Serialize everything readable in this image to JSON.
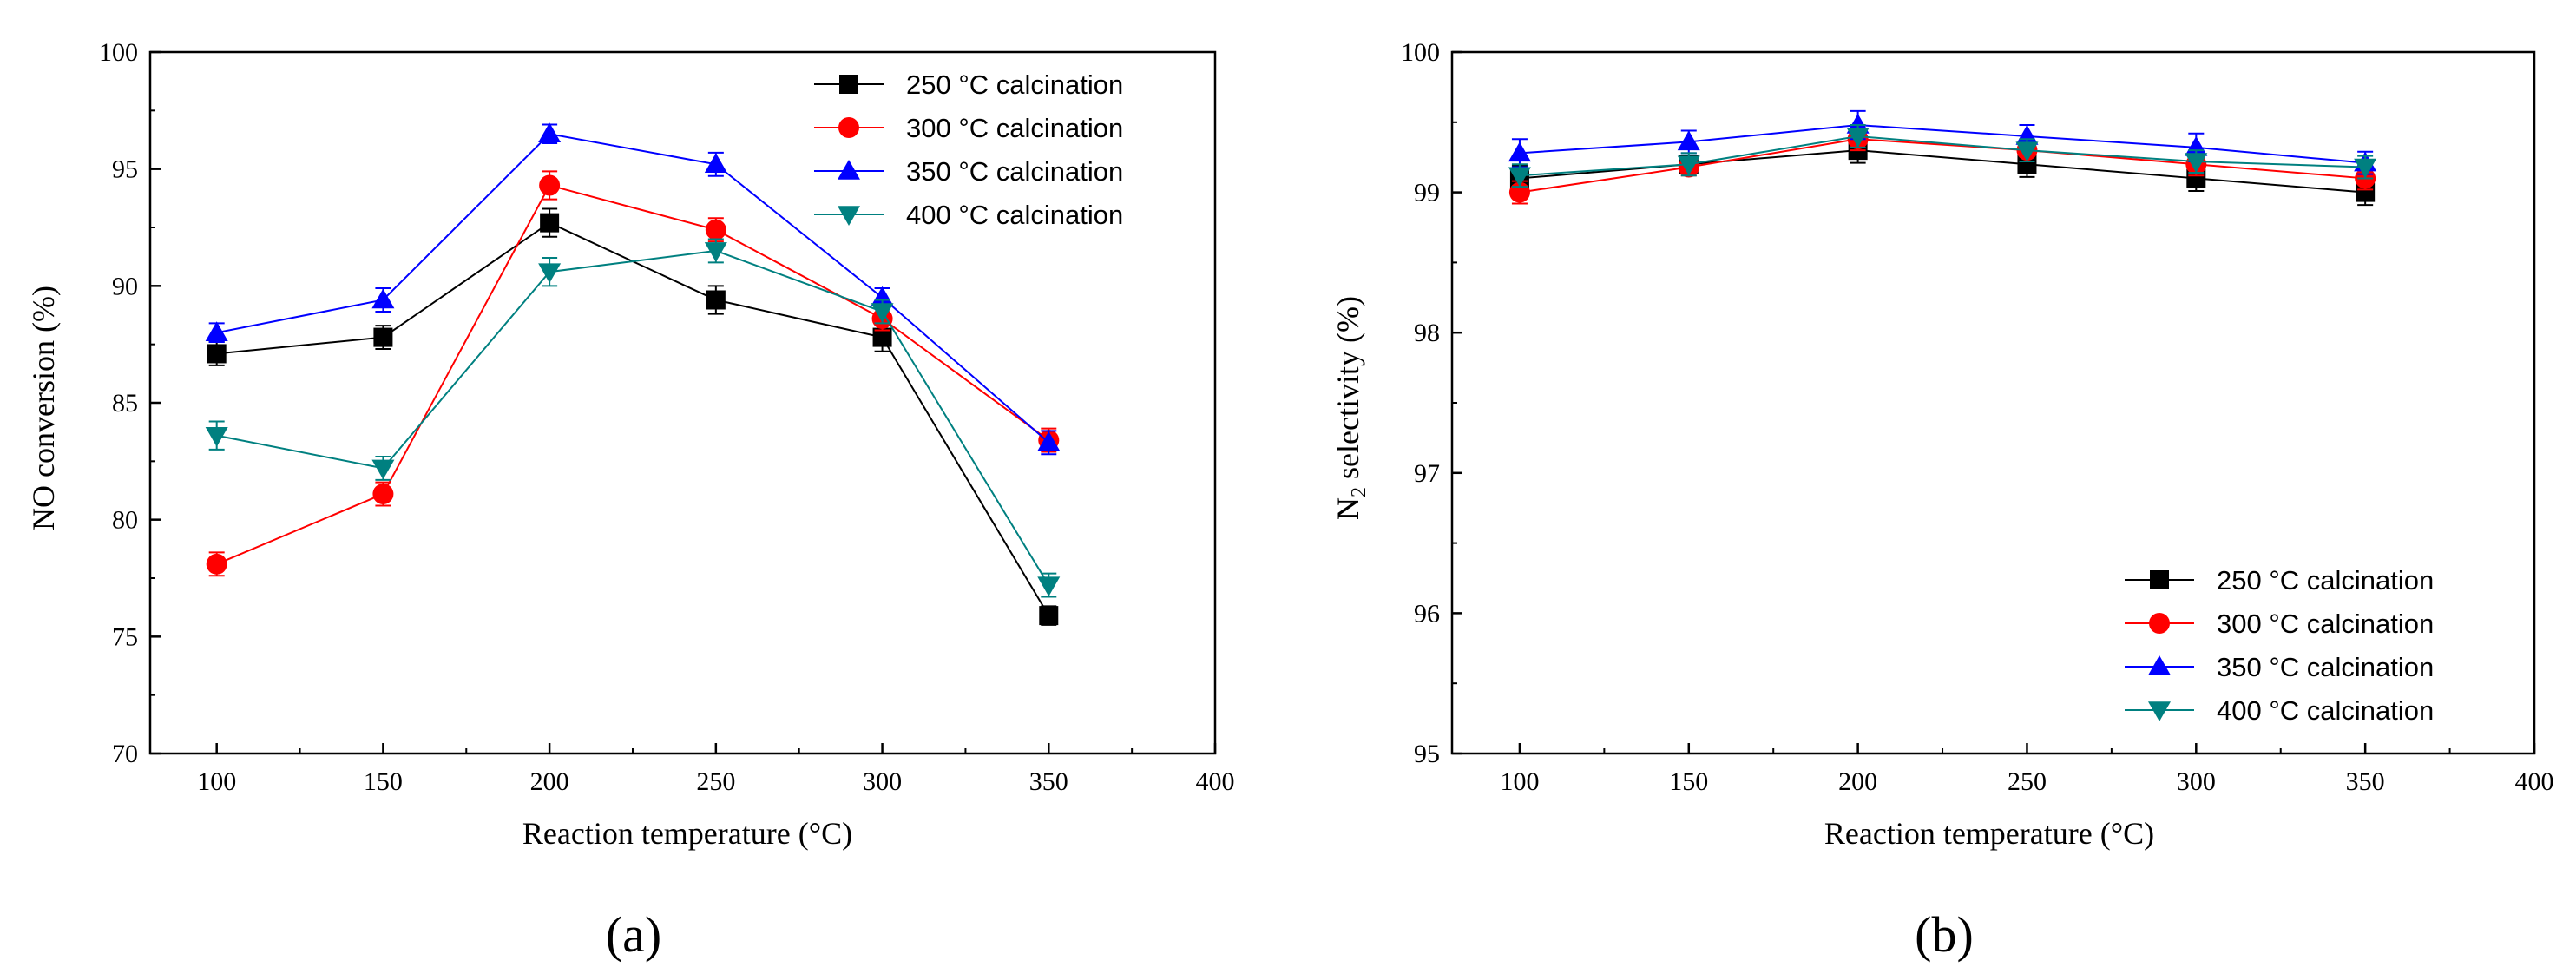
{
  "chart_data": [
    {
      "type": "line",
      "panel_label": "(a)",
      "title": "",
      "xlabel": "Reaction temperature (°C)",
      "ylabel": "NO conversion (%)",
      "xlim": [
        80,
        400
      ],
      "ylim": [
        70,
        100
      ],
      "xticks": [
        100,
        150,
        200,
        250,
        300,
        350,
        400
      ],
      "xtick_labels": [
        "100",
        "150",
        "200",
        "250",
        "300",
        "350",
        "400"
      ],
      "yticks": [
        70,
        75,
        80,
        85,
        90,
        95,
        100
      ],
      "ytick_labels": [
        "70",
        "75",
        "80",
        "85",
        "90",
        "95",
        "100"
      ],
      "legend_position": "top-right",
      "x": [
        100,
        150,
        200,
        250,
        300,
        350
      ],
      "series": [
        {
          "name": "250 °C calcination",
          "color": "#000000",
          "marker": "square",
          "values": [
            87.1,
            87.8,
            92.7,
            89.4,
            87.8,
            75.9
          ],
          "errors": [
            0.5,
            0.5,
            0.6,
            0.6,
            0.6,
            0.4
          ]
        },
        {
          "name": "300 °C calcination",
          "color": "#ff0000",
          "marker": "circle",
          "values": [
            78.1,
            81.1,
            94.3,
            92.4,
            88.6,
            83.4
          ],
          "errors": [
            0.5,
            0.5,
            0.6,
            0.5,
            0.5,
            0.5
          ]
        },
        {
          "name": "350 °C calcination",
          "color": "#0000ff",
          "marker": "triangle-up",
          "values": [
            88.0,
            89.4,
            96.5,
            95.2,
            89.5,
            83.3
          ],
          "errors": [
            0.4,
            0.5,
            0.4,
            0.5,
            0.4,
            0.5
          ]
        },
        {
          "name": "400 °C calcination",
          "color": "#008080",
          "marker": "triangle-down",
          "values": [
            83.6,
            82.2,
            90.6,
            91.5,
            88.9,
            77.2
          ],
          "errors": [
            0.6,
            0.5,
            0.6,
            0.5,
            0.5,
            0.5
          ]
        }
      ]
    },
    {
      "type": "line",
      "panel_label": "(b)",
      "title": "",
      "xlabel": "Reaction temperature (°C)",
      "ylabel_main": "N",
      "ylabel_sub": "2",
      "ylabel_rest": " selectivity (%)",
      "xlim": [
        80,
        400
      ],
      "ylim": [
        95,
        100
      ],
      "xticks": [
        100,
        150,
        200,
        250,
        300,
        350,
        400
      ],
      "xtick_labels": [
        "100",
        "150",
        "200",
        "250",
        "300",
        "350",
        "400"
      ],
      "yticks": [
        95,
        96,
        97,
        98,
        99,
        100
      ],
      "ytick_labels": [
        "95",
        "96",
        "97",
        "98",
        "99",
        "100"
      ],
      "legend_position": "bottom-right",
      "x": [
        100,
        150,
        200,
        250,
        300,
        350
      ],
      "series": [
        {
          "name": "250 °C calcination",
          "color": "#000000",
          "marker": "square",
          "values": [
            99.1,
            99.2,
            99.3,
            99.2,
            99.1,
            99.0
          ],
          "errors": [
            0.09,
            0.06,
            0.09,
            0.09,
            0.09,
            0.09
          ]
        },
        {
          "name": "300 °C calcination",
          "color": "#ff0000",
          "marker": "circle",
          "values": [
            99.0,
            99.18,
            99.38,
            99.3,
            99.2,
            99.1
          ],
          "errors": [
            0.08,
            0.06,
            0.08,
            0.08,
            0.08,
            0.08
          ]
        },
        {
          "name": "350 °C calcination",
          "color": "#0000ff",
          "marker": "triangle-up",
          "values": [
            99.28,
            99.36,
            99.48,
            99.4,
            99.32,
            99.21
          ],
          "errors": [
            0.1,
            0.08,
            0.1,
            0.08,
            0.1,
            0.08
          ]
        },
        {
          "name": "400 °C calcination",
          "color": "#008080",
          "marker": "triangle-down",
          "values": [
            99.12,
            99.2,
            99.4,
            99.3,
            99.22,
            99.18
          ],
          "errors": [
            0.08,
            0.08,
            0.08,
            0.08,
            0.08,
            0.08
          ]
        }
      ]
    }
  ]
}
